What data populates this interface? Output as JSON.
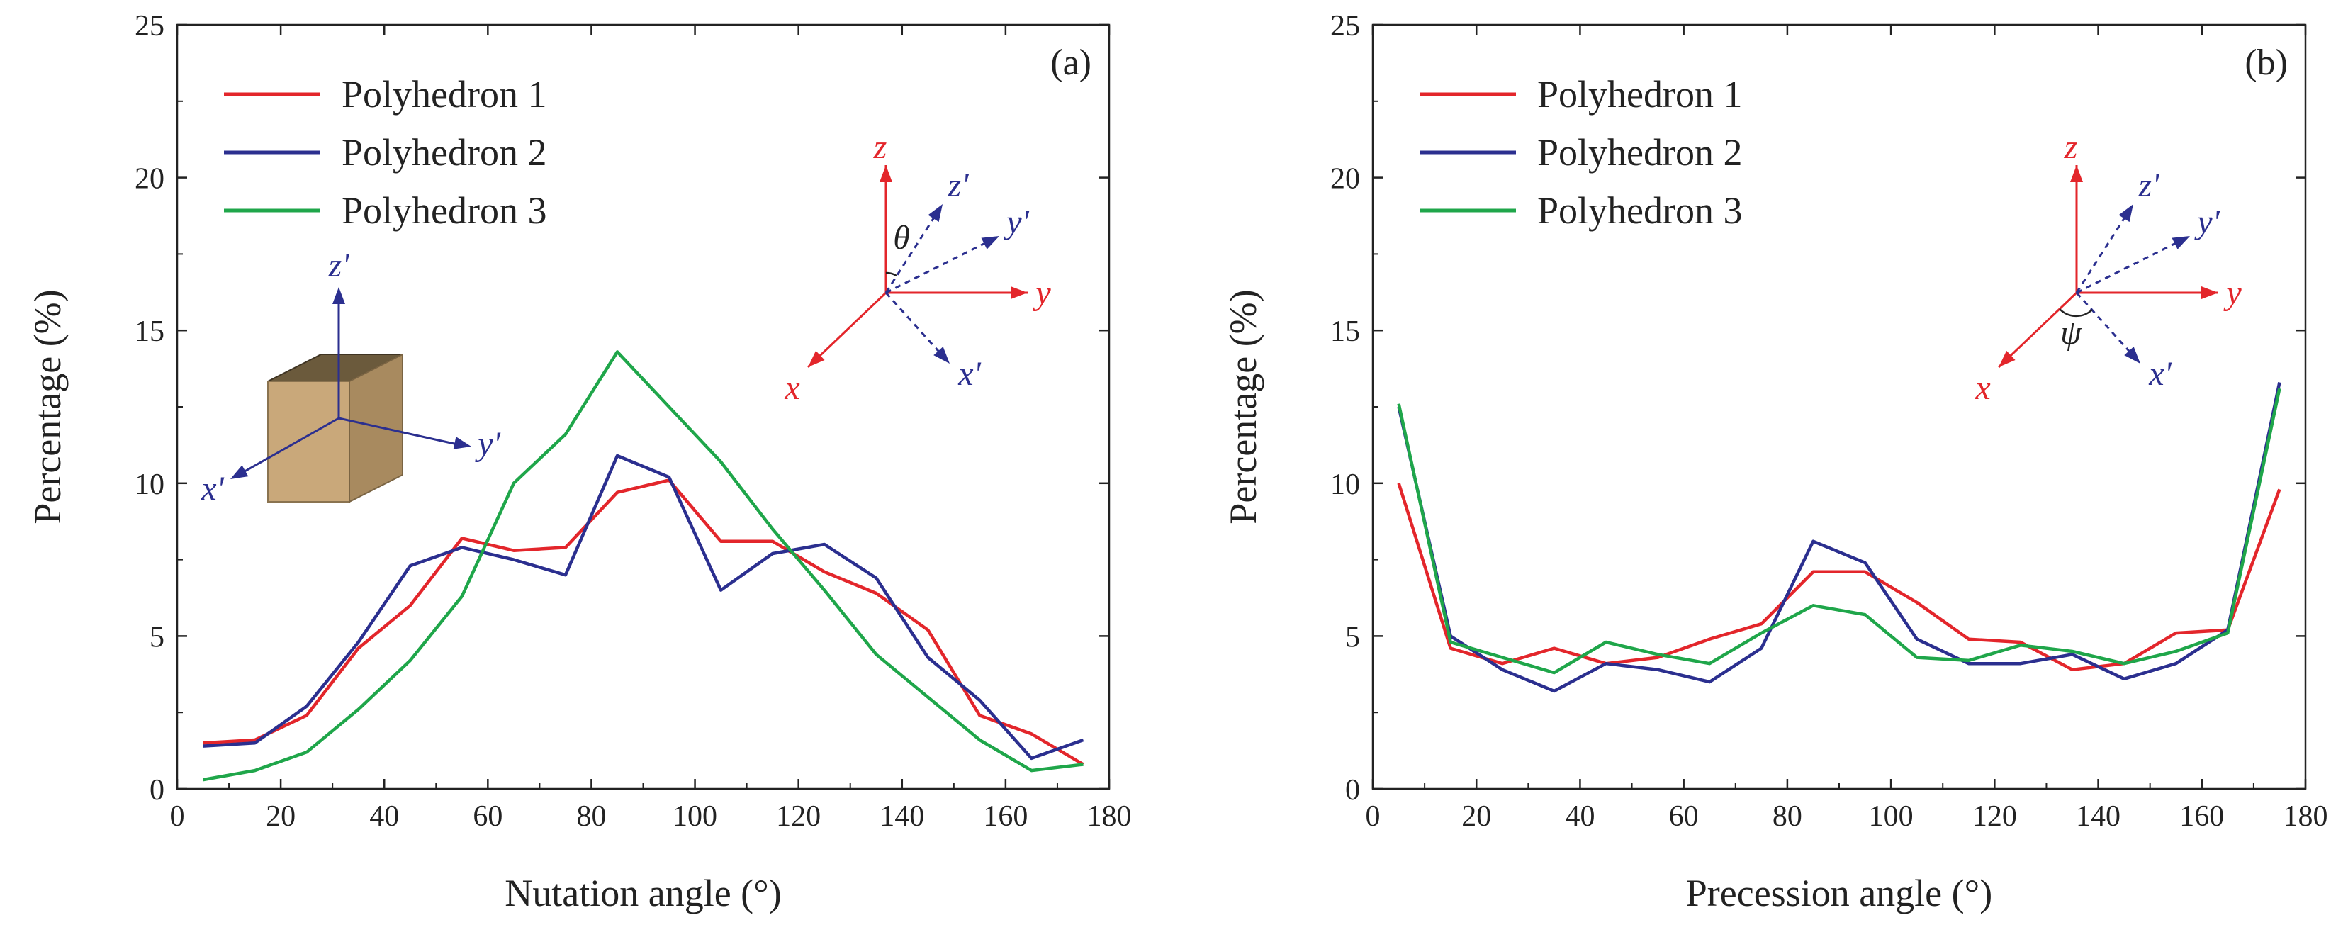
{
  "chart_data": [
    {
      "type": "line",
      "panel_label": "(a)",
      "xlabel": "Nutation angle (°)",
      "ylabel": "Percentage (%)",
      "xlim": [
        0,
        180
      ],
      "ylim": [
        0,
        25
      ],
      "xticks": [
        0,
        20,
        40,
        60,
        80,
        100,
        120,
        140,
        160,
        180
      ],
      "yticks": [
        0,
        5,
        10,
        15,
        20,
        25
      ],
      "legend_position": "top-left",
      "x": [
        5,
        15,
        25,
        35,
        45,
        55,
        65,
        75,
        85,
        95,
        105,
        115,
        125,
        135,
        145,
        155,
        165,
        175
      ],
      "series": [
        {
          "name": "Polyhedron 1",
          "color": "#e3262b",
          "values": [
            1.5,
            1.6,
            2.4,
            4.6,
            6.0,
            8.2,
            7.8,
            7.9,
            9.7,
            10.1,
            8.1,
            8.1,
            7.1,
            6.4,
            5.2,
            2.4,
            1.8,
            0.8
          ]
        },
        {
          "name": "Polyhedron 2",
          "color": "#2b2f8f",
          "values": [
            1.4,
            1.5,
            2.7,
            4.8,
            7.3,
            7.9,
            7.5,
            7.0,
            10.9,
            10.2,
            6.5,
            7.7,
            8.0,
            6.9,
            4.3,
            2.9,
            1.0,
            1.6
          ]
        },
        {
          "name": "Polyhedron 3",
          "color": "#1fa64a",
          "values": [
            0.3,
            0.6,
            1.2,
            2.6,
            4.2,
            6.3,
            10.0,
            11.6,
            14.3,
            12.5,
            10.7,
            8.5,
            6.5,
            4.4,
            3.0,
            1.6,
            0.6,
            0.8
          ]
        }
      ],
      "inset": {
        "axes_red": [
          "z",
          "y",
          "x"
        ],
        "axes_blue": [
          "z'",
          "y'",
          "x'"
        ],
        "angle_symbol": "θ"
      },
      "cube_inset": {
        "axes": [
          "z'",
          "y'",
          "x'"
        ]
      }
    },
    {
      "type": "line",
      "panel_label": "(b)",
      "xlabel": "Precession angle (°)",
      "ylabel": "Percentage (%)",
      "xlim": [
        0,
        180
      ],
      "ylim": [
        0,
        25
      ],
      "xticks": [
        0,
        20,
        40,
        60,
        80,
        100,
        120,
        140,
        160,
        180
      ],
      "yticks": [
        0,
        5,
        10,
        15,
        20,
        25
      ],
      "legend_position": "top-left",
      "x": [
        5,
        15,
        25,
        35,
        45,
        55,
        65,
        75,
        85,
        95,
        105,
        115,
        125,
        135,
        145,
        155,
        165,
        175
      ],
      "series": [
        {
          "name": "Polyhedron 1",
          "color": "#e3262b",
          "values": [
            10.0,
            4.6,
            4.1,
            4.6,
            4.1,
            4.3,
            4.9,
            5.4,
            7.1,
            7.1,
            6.1,
            4.9,
            4.8,
            3.9,
            4.1,
            5.1,
            5.2,
            9.8
          ]
        },
        {
          "name": "Polyhedron 2",
          "color": "#2b2f8f",
          "values": [
            12.5,
            5.0,
            3.9,
            3.2,
            4.1,
            3.9,
            3.5,
            4.6,
            8.1,
            7.4,
            4.9,
            4.1,
            4.1,
            4.4,
            3.6,
            4.1,
            5.2,
            13.3
          ]
        },
        {
          "name": "Polyhedron 3",
          "color": "#1fa64a",
          "values": [
            12.6,
            4.8,
            4.3,
            3.8,
            4.8,
            4.4,
            4.1,
            5.1,
            6.0,
            5.7,
            4.3,
            4.2,
            4.7,
            4.5,
            4.1,
            4.5,
            5.1,
            13.1
          ]
        }
      ],
      "inset": {
        "axes_red": [
          "z",
          "y",
          "x"
        ],
        "axes_blue": [
          "z'",
          "y'",
          "x'"
        ],
        "angle_symbol": "ψ"
      }
    }
  ]
}
